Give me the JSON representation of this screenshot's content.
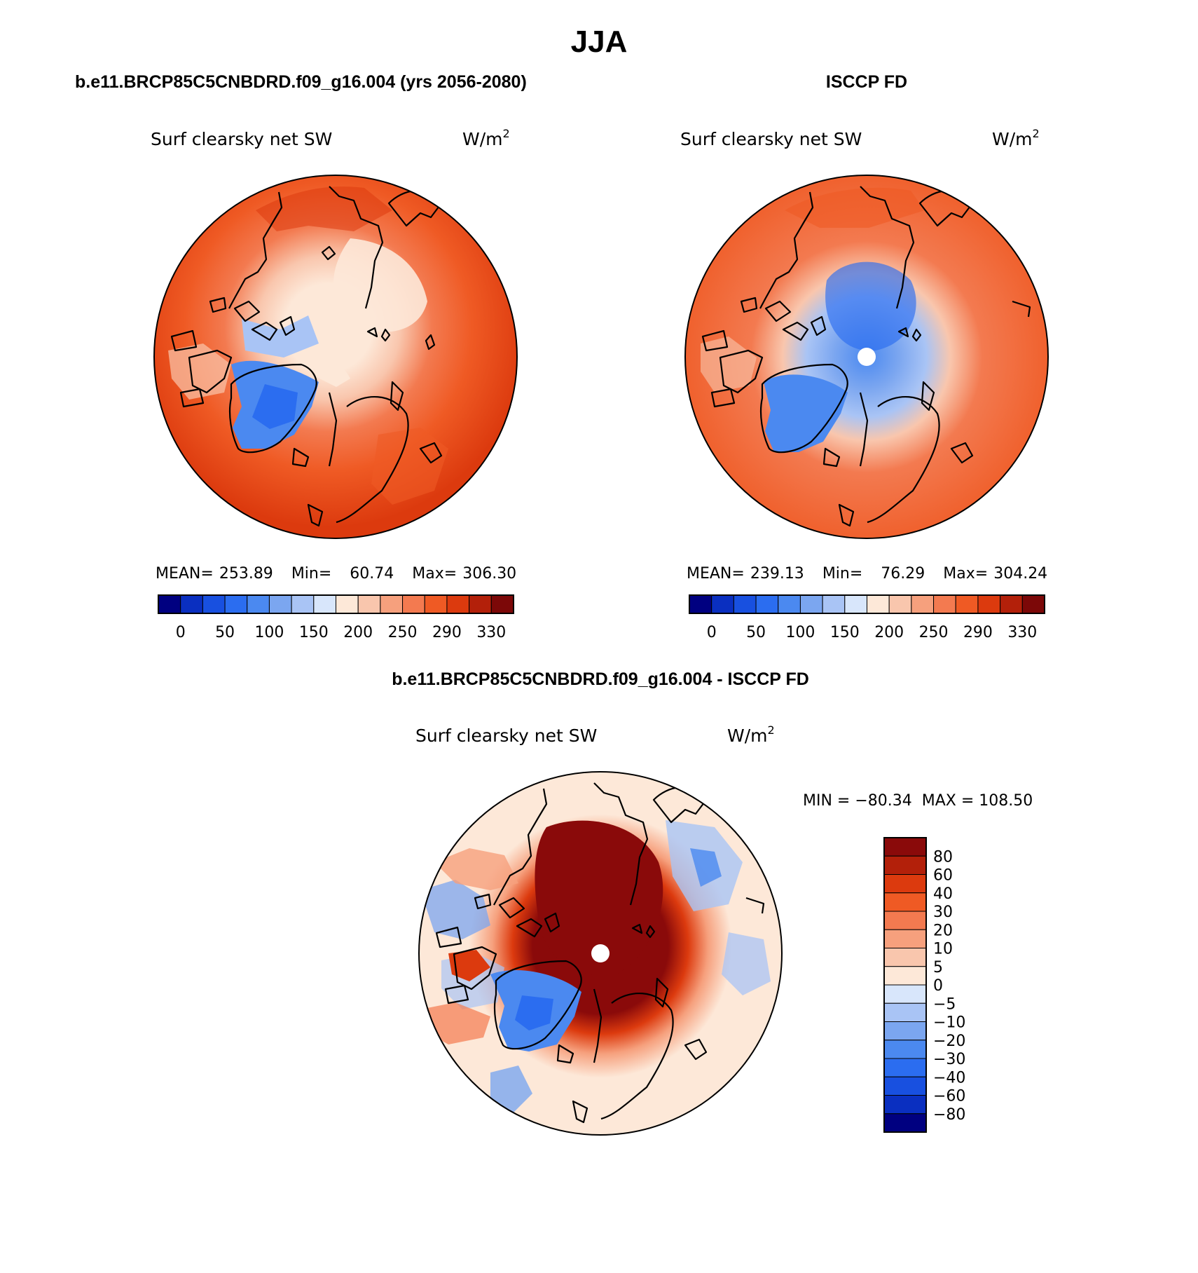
{
  "page": {
    "title": "JJA"
  },
  "palettes": {
    "absolute": [
      "#000080",
      "#0a2fc0",
      "#1850e0",
      "#2b6df0",
      "#4b89f0",
      "#7ba6f0",
      "#a9c4f5",
      "#d8e6fb",
      "#fde8d8",
      "#f9c6ad",
      "#f6a07d",
      "#f37a50",
      "#ef5a24",
      "#dc3a0e",
      "#b3200a",
      "#7c0808"
    ],
    "difference": [
      "#000080",
      "#0a2fc0",
      "#1850e0",
      "#2b6df0",
      "#4b89f0",
      "#7ba6f0",
      "#a9c4f5",
      "#d8e6fb",
      "#fde8d8",
      "#f9c6ad",
      "#f6a07d",
      "#f37a50",
      "#ef5a24",
      "#dc3a0e",
      "#b3200a",
      "#8a0a0a"
    ]
  },
  "panels": [
    {
      "id": "model",
      "header": "b.e11.BRCP85C5CNBDRD.f09_g16.004 (yrs 2056-2080)",
      "variable": "Surf clearsky net SW",
      "units": "W/m",
      "units_sup": "2",
      "stats": {
        "mean_label": "MEAN=",
        "mean": "253.89",
        "min_label": "Min=",
        "min": "60.74",
        "max_label": "Max=",
        "max": "306.30"
      },
      "colorbar_ticks": [
        "0",
        "50",
        "100",
        "150",
        "200",
        "250",
        "290",
        "330"
      ]
    },
    {
      "id": "obs",
      "header": "ISCCP FD",
      "variable": "Surf clearsky net SW",
      "units": "W/m",
      "units_sup": "2",
      "stats": {
        "mean_label": "MEAN=",
        "mean": "239.13",
        "min_label": "Min=",
        "min": "76.29",
        "max_label": "Max=",
        "max": "304.24"
      },
      "colorbar_ticks": [
        "0",
        "50",
        "100",
        "150",
        "200",
        "250",
        "290",
        "330"
      ]
    },
    {
      "id": "diff",
      "header": "b.e11.BRCP85C5CNBDRD.f09_g16.004 - ISCCP FD",
      "variable": "Surf clearsky net SW",
      "units": "W/m",
      "units_sup": "2",
      "minmax": "MIN = −80.34  MAX = 108.50",
      "colorbar_ticks": [
        "80",
        "60",
        "40",
        "30",
        "20",
        "10",
        "5",
        "0",
        "−5",
        "−10",
        "−20",
        "−30",
        "−40",
        "−60",
        "−80"
      ]
    }
  ]
}
